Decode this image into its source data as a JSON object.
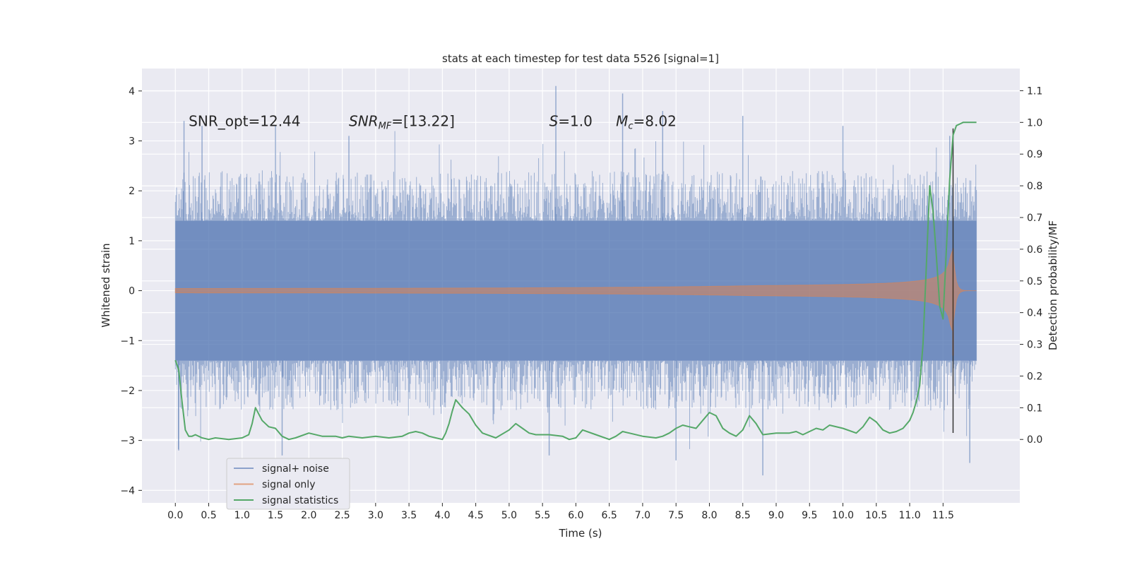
{
  "chart_data": {
    "type": "line",
    "title": "stats at each timestep for test data 5526 [signal=1]",
    "xlabel": "Time (s)",
    "ylabel": "Whitened strain",
    "ylabel_right": "Detection probability/MF",
    "xlim": [
      -0.5,
      12.65
    ],
    "ylim": [
      -4.25,
      4.45
    ],
    "ylim_right": [
      -0.2,
      1.17
    ],
    "x_ticks": [
      "0.0",
      "0.5",
      "1.0",
      "1.5",
      "2.0",
      "2.5",
      "3.0",
      "3.5",
      "4.0",
      "4.5",
      "5.0",
      "5.5",
      "6.0",
      "6.5",
      "7.0",
      "7.5",
      "8.0",
      "8.5",
      "9.0",
      "9.5",
      "10.0",
      "10.5",
      "11.0",
      "11.5"
    ],
    "y_ticks": [
      "−4",
      "−3",
      "−2",
      "−1",
      "0",
      "1",
      "2",
      "3",
      "4"
    ],
    "y_ticks_right": [
      "0.0",
      "0.1",
      "0.2",
      "0.3",
      "0.4",
      "0.5",
      "0.6",
      "0.7",
      "0.8",
      "0.9",
      "1.0",
      "1.1"
    ],
    "grid": true,
    "legend_position": "lower-left",
    "colors": {
      "background": "#eaeaf2",
      "grid": "#ffffff",
      "noise": "#4c72b0",
      "signal": "#dd8452",
      "stats": "#55a868",
      "marker": "#333333"
    },
    "annotations": [
      {
        "label": "SNR_opt=12.44",
        "x": 0.2,
        "y": 3.3
      },
      {
        "label": "SNR_MF=[13.22]",
        "x": 2.6,
        "y": 3.3
      },
      {
        "label": "S=1.0",
        "x": 5.6,
        "y": 3.3
      },
      {
        "label": "M_c=8.02",
        "x": 6.6,
        "y": 3.3
      }
    ],
    "series": [
      {
        "name": "signal+ noise",
        "type": "noise-band",
        "t_range": [
          0.0,
          12.0
        ],
        "dense_band": [
          -1.4,
          1.4
        ],
        "typical_envelope": [
          -2.0,
          2.1
        ],
        "peaks": [
          [
            0.13,
            3.4
          ],
          [
            0.4,
            3.3
          ],
          [
            1.5,
            3.3
          ],
          [
            2.6,
            3.1
          ],
          [
            5.7,
            4.1
          ],
          [
            6.7,
            3.95
          ],
          [
            7.3,
            3.6
          ],
          [
            8.5,
            3.5
          ],
          [
            10.0,
            3.3
          ],
          [
            11.6,
            3.1
          ],
          [
            0.05,
            -3.2
          ],
          [
            1.6,
            -3.3
          ],
          [
            5.6,
            -3.3
          ],
          [
            8.8,
            -3.7
          ],
          [
            11.9,
            -3.45
          ],
          [
            7.5,
            -3.4
          ]
        ]
      },
      {
        "name": "signal only",
        "type": "chirp",
        "t_range": [
          0.0,
          12.0
        ],
        "merger_time": 11.65,
        "peak_amplitude": 0.85
      },
      {
        "name": "signal statistics",
        "axis": "right",
        "x": [
          0.0,
          0.05,
          0.1,
          0.15,
          0.2,
          0.25,
          0.3,
          0.4,
          0.5,
          0.6,
          0.8,
          1.0,
          1.1,
          1.15,
          1.2,
          1.25,
          1.3,
          1.4,
          1.5,
          1.6,
          1.7,
          1.8,
          2.0,
          2.2,
          2.4,
          2.5,
          2.6,
          2.8,
          3.0,
          3.2,
          3.4,
          3.5,
          3.6,
          3.7,
          3.8,
          3.9,
          4.0,
          4.05,
          4.1,
          4.15,
          4.2,
          4.3,
          4.4,
          4.5,
          4.6,
          4.8,
          5.0,
          5.1,
          5.2,
          5.3,
          5.4,
          5.6,
          5.8,
          5.9,
          6.0,
          6.1,
          6.3,
          6.5,
          6.6,
          6.7,
          6.8,
          7.0,
          7.2,
          7.3,
          7.4,
          7.5,
          7.6,
          7.7,
          7.8,
          7.9,
          8.0,
          8.1,
          8.2,
          8.3,
          8.4,
          8.5,
          8.6,
          8.7,
          8.8,
          9.0,
          9.2,
          9.3,
          9.4,
          9.5,
          9.6,
          9.7,
          9.8,
          10.0,
          10.2,
          10.3,
          10.4,
          10.5,
          10.6,
          10.7,
          10.8,
          10.9,
          11.0,
          11.05,
          11.1,
          11.15,
          11.2,
          11.25,
          11.3,
          11.35,
          11.4,
          11.45,
          11.5,
          11.55,
          11.6,
          11.65,
          11.7,
          11.75,
          11.8,
          11.9,
          12.0
        ],
        "values": [
          0.25,
          0.22,
          0.12,
          0.03,
          0.01,
          0.01,
          0.015,
          0.005,
          0.0,
          0.005,
          0.0,
          0.005,
          0.015,
          0.05,
          0.1,
          0.08,
          0.06,
          0.04,
          0.035,
          0.01,
          0.0,
          0.005,
          0.02,
          0.01,
          0.01,
          0.005,
          0.01,
          0.005,
          0.01,
          0.005,
          0.01,
          0.02,
          0.025,
          0.02,
          0.01,
          0.005,
          0.0,
          0.02,
          0.05,
          0.09,
          0.125,
          0.1,
          0.08,
          0.045,
          0.02,
          0.005,
          0.03,
          0.05,
          0.035,
          0.02,
          0.015,
          0.015,
          0.01,
          0.0,
          0.005,
          0.03,
          0.015,
          0.0,
          0.01,
          0.025,
          0.02,
          0.01,
          0.005,
          0.01,
          0.02,
          0.035,
          0.045,
          0.04,
          0.035,
          0.06,
          0.085,
          0.075,
          0.035,
          0.02,
          0.01,
          0.03,
          0.075,
          0.05,
          0.015,
          0.02,
          0.02,
          0.025,
          0.015,
          0.025,
          0.035,
          0.03,
          0.045,
          0.035,
          0.02,
          0.04,
          0.07,
          0.055,
          0.03,
          0.02,
          0.025,
          0.035,
          0.06,
          0.085,
          0.12,
          0.17,
          0.3,
          0.55,
          0.8,
          0.72,
          0.58,
          0.42,
          0.38,
          0.6,
          0.82,
          0.96,
          0.99,
          0.995,
          1.0,
          1.0,
          1.0
        ]
      }
    ],
    "marker_line": {
      "x": 11.65,
      "y_range": [
        -2.85,
        3.25
      ]
    }
  }
}
